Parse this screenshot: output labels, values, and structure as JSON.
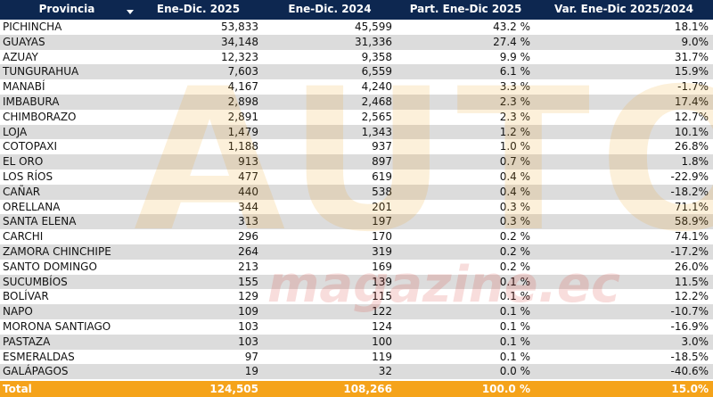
{
  "headers": {
    "provincia": "Provincia",
    "ene_dic_2025": "Ene-Dic. 2025",
    "ene_dic_2024": "Ene-Dic. 2024",
    "part_2025": "Part. Ene-Dic 2025",
    "var_2025_2024": "Var. Ene-Dic 2025/2024"
  },
  "sort_icon": "chevron-down-icon",
  "rows": [
    [
      "PICHINCHA",
      "53,833",
      "45,599",
      "43.2 %",
      "18.1%"
    ],
    [
      "GUAYAS",
      "34,148",
      "31,336",
      "27.4 %",
      "9.0%"
    ],
    [
      "AZUAY",
      "12,323",
      "9,358",
      "9.9 %",
      "31.7%"
    ],
    [
      "TUNGURAHUA",
      "7,603",
      "6,559",
      "6.1 %",
      "15.9%"
    ],
    [
      "MANABÍ",
      "4,167",
      "4,240",
      "3.3 %",
      "-1.7%"
    ],
    [
      "IMBABURA",
      "2,898",
      "2,468",
      "2.3 %",
      "17.4%"
    ],
    [
      "CHIMBORAZO",
      "2,891",
      "2,565",
      "2.3 %",
      "12.7%"
    ],
    [
      "LOJA",
      "1,479",
      "1,343",
      "1.2 %",
      "10.1%"
    ],
    [
      "COTOPAXI",
      "1,188",
      "937",
      "1.0 %",
      "26.8%"
    ],
    [
      "EL ORO",
      "913",
      "897",
      "0.7 %",
      "1.8%"
    ],
    [
      "LOS RÍOS",
      "477",
      "619",
      "0.4 %",
      "-22.9%"
    ],
    [
      "CAÑAR",
      "440",
      "538",
      "0.4 %",
      "-18.2%"
    ],
    [
      "ORELLANA",
      "344",
      "201",
      "0.3 %",
      "71.1%"
    ],
    [
      "SANTA ELENA",
      "313",
      "197",
      "0.3 %",
      "58.9%"
    ],
    [
      "CARCHI",
      "296",
      "170",
      "0.2 %",
      "74.1%"
    ],
    [
      "ZAMORA CHINCHIPE",
      "264",
      "319",
      "0.2 %",
      "-17.2%"
    ],
    [
      "SANTO DOMINGO",
      "213",
      "169",
      "0.2 %",
      "26.0%"
    ],
    [
      "SUCUMBÍOS",
      "155",
      "139",
      "0.1 %",
      "11.5%"
    ],
    [
      "BOLÍVAR",
      "129",
      "115",
      "0.1 %",
      "12.2%"
    ],
    [
      "NAPO",
      "109",
      "122",
      "0.1 %",
      "-10.7%"
    ],
    [
      "MORONA SANTIAGO",
      "103",
      "124",
      "0.1 %",
      "-16.9%"
    ],
    [
      "PASTAZA",
      "103",
      "100",
      "0.1 %",
      "3.0%"
    ],
    [
      "ESMERALDAS",
      "97",
      "119",
      "0.1 %",
      "-18.5%"
    ],
    [
      "GALÁPAGOS",
      "19",
      "32",
      "0.0 %",
      "-40.6%"
    ]
  ],
  "total": [
    "Total",
    "124,505",
    "108,266",
    "100.0 %",
    "15.0%"
  ],
  "watermark": {
    "big": "AUTO",
    "sub": "magazine.ec"
  },
  "colors": {
    "header_bg": "#0d2750",
    "total_bg": "#f5a31a",
    "alt_row": "#dcdcdc"
  }
}
